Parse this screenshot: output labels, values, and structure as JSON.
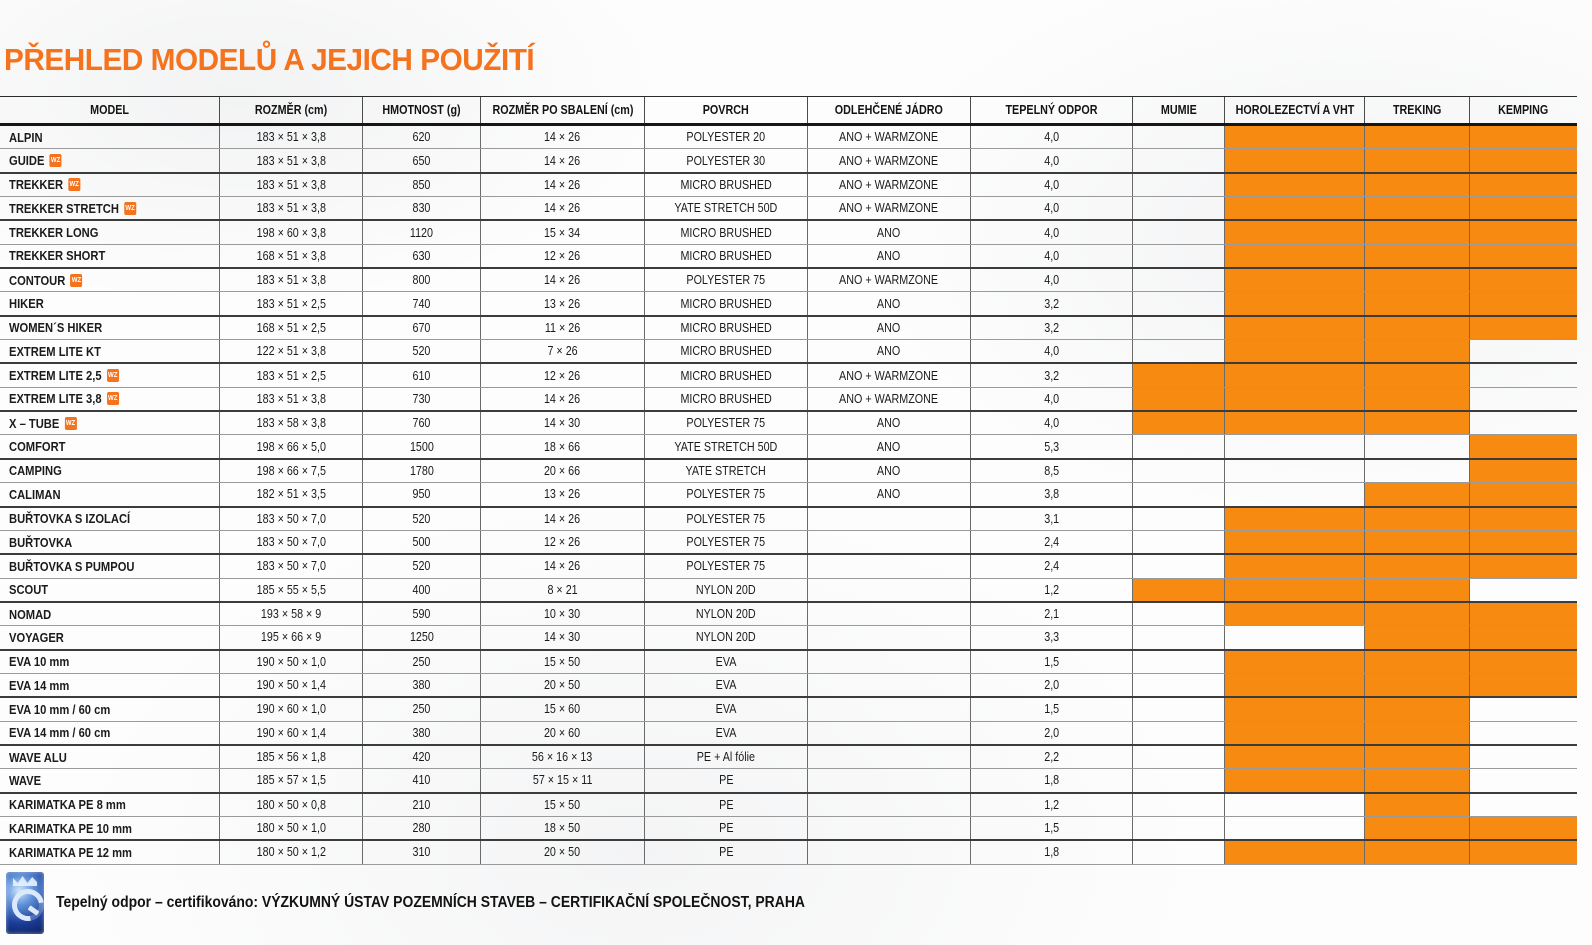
{
  "title": "PŘEHLED MODELŮ A JEJICH POUŽITÍ",
  "colors": {
    "accent_orange": "#f78b12",
    "title_orange": "#f4731c",
    "logo_blue": "#1c3e9a"
  },
  "wz_badge_label": "WZ",
  "table": {
    "columns": [
      "MODEL",
      "ROZMĚR (cm)",
      "HMOTNOST (g)",
      "ROZMĚR PO SBALENÍ (cm)",
      "POVRCH",
      "ODLEHČENÉ JÁDRO",
      "TEPELNÝ ODPOR",
      "MUMIE",
      "HOROLEZECTVÍ A VHT",
      "TREKING",
      "KEMPING"
    ],
    "rows": [
      {
        "model": "ALPIN",
        "wz": false,
        "rozmer": "183 × 51 × 3,8",
        "hmotnost": "620",
        "sbaleni": "14 × 26",
        "povrch": "POLYESTER 20",
        "jadro": "ANO + WARMZONE",
        "odpor": "4,0",
        "use": {
          "mumie": false,
          "horolezectvi": true,
          "treking": true,
          "kemping": true
        }
      },
      {
        "model": "GUIDE",
        "wz": true,
        "rozmer": "183 × 51 × 3,8",
        "hmotnost": "650",
        "sbaleni": "14 × 26",
        "povrch": "POLYESTER 30",
        "jadro": "ANO + WARMZONE",
        "odpor": "4,0",
        "use": {
          "mumie": false,
          "horolezectvi": true,
          "treking": true,
          "kemping": true
        }
      },
      {
        "model": "TREKKER",
        "wz": true,
        "rozmer": "183 × 51 × 3,8",
        "hmotnost": "850",
        "sbaleni": "14 × 26",
        "povrch": "MICRO BRUSHED",
        "jadro": "ANO + WARMZONE",
        "odpor": "4,0",
        "use": {
          "mumie": false,
          "horolezectvi": true,
          "treking": true,
          "kemping": true
        }
      },
      {
        "model": "TREKKER STRETCH",
        "wz": true,
        "rozmer": "183 × 51 × 3,8",
        "hmotnost": "830",
        "sbaleni": "14 × 26",
        "povrch": "YATE STRETCH 50D",
        "jadro": "ANO + WARMZONE",
        "odpor": "4,0",
        "use": {
          "mumie": false,
          "horolezectvi": true,
          "treking": true,
          "kemping": true
        }
      },
      {
        "model": "TREKKER LONG",
        "wz": false,
        "rozmer": "198 × 60 × 3,8",
        "hmotnost": "1120",
        "sbaleni": "15 × 34",
        "povrch": "MICRO BRUSHED",
        "jadro": "ANO",
        "odpor": "4,0",
        "use": {
          "mumie": false,
          "horolezectvi": true,
          "treking": true,
          "kemping": true
        }
      },
      {
        "model": "TREKKER SHORT",
        "wz": false,
        "rozmer": "168 × 51 × 3,8",
        "hmotnost": "630",
        "sbaleni": "12 × 26",
        "povrch": "MICRO BRUSHED",
        "jadro": "ANO",
        "odpor": "4,0",
        "use": {
          "mumie": false,
          "horolezectvi": true,
          "treking": true,
          "kemping": true
        }
      },
      {
        "model": "CONTOUR",
        "wz": true,
        "rozmer": "183 × 51 × 3,8",
        "hmotnost": "800",
        "sbaleni": "14 × 26",
        "povrch": "POLYESTER 75",
        "jadro": "ANO + WARMZONE",
        "odpor": "4,0",
        "use": {
          "mumie": false,
          "horolezectvi": true,
          "treking": true,
          "kemping": true
        }
      },
      {
        "model": "HIKER",
        "wz": false,
        "rozmer": "183 × 51 × 2,5",
        "hmotnost": "740",
        "sbaleni": "13 × 26",
        "povrch": "MICRO BRUSHED",
        "jadro": "ANO",
        "odpor": "3,2",
        "use": {
          "mumie": false,
          "horolezectvi": true,
          "treking": true,
          "kemping": true
        }
      },
      {
        "model": "WOMEN´S HIKER",
        "wz": false,
        "rozmer": "168 × 51 × 2,5",
        "hmotnost": "670",
        "sbaleni": "11 × 26",
        "povrch": "MICRO BRUSHED",
        "jadro": "ANO",
        "odpor": "3,2",
        "use": {
          "mumie": false,
          "horolezectvi": true,
          "treking": true,
          "kemping": true
        }
      },
      {
        "model": "EXTREM LITE KT",
        "wz": false,
        "rozmer": "122 × 51 × 3,8",
        "hmotnost": "520",
        "sbaleni": "7 × 26",
        "povrch": "MICRO BRUSHED",
        "jadro": "ANO",
        "odpor": "4,0",
        "use": {
          "mumie": false,
          "horolezectvi": true,
          "treking": true,
          "kemping": false
        }
      },
      {
        "model": "EXTREM LITE 2,5",
        "wz": true,
        "rozmer": "183 × 51 × 2,5",
        "hmotnost": "610",
        "sbaleni": "12 × 26",
        "povrch": "MICRO BRUSHED",
        "jadro": "ANO + WARMZONE",
        "odpor": "3,2",
        "use": {
          "mumie": true,
          "horolezectvi": true,
          "treking": true,
          "kemping": false
        }
      },
      {
        "model": "EXTREM LITE 3,8",
        "wz": true,
        "rozmer": "183 × 51 × 3,8",
        "hmotnost": "730",
        "sbaleni": "14 × 26",
        "povrch": "MICRO BRUSHED",
        "jadro": "ANO + WARMZONE",
        "odpor": "4,0",
        "use": {
          "mumie": true,
          "horolezectvi": true,
          "treking": true,
          "kemping": false
        }
      },
      {
        "model": "X – TUBE",
        "wz": true,
        "rozmer": "183 × 58 × 3,8",
        "hmotnost": "760",
        "sbaleni": "14 × 30",
        "povrch": "POLYESTER 75",
        "jadro": "ANO",
        "odpor": "4,0",
        "use": {
          "mumie": true,
          "horolezectvi": true,
          "treking": true,
          "kemping": false
        }
      },
      {
        "model": "COMFORT",
        "wz": false,
        "rozmer": "198 × 66 × 5,0",
        "hmotnost": "1500",
        "sbaleni": "18 × 66",
        "povrch": "YATE STRETCH 50D",
        "jadro": "ANO",
        "odpor": "5,3",
        "use": {
          "mumie": false,
          "horolezectvi": false,
          "treking": false,
          "kemping": true
        }
      },
      {
        "model": "CAMPING",
        "wz": false,
        "rozmer": "198 × 66 × 7,5",
        "hmotnost": "1780",
        "sbaleni": "20 × 66",
        "povrch": "YATE STRETCH",
        "jadro": "ANO",
        "odpor": "8,5",
        "use": {
          "mumie": false,
          "horolezectvi": false,
          "treking": false,
          "kemping": true
        }
      },
      {
        "model": "CALIMAN",
        "wz": false,
        "rozmer": "182 × 51 × 3,5",
        "hmotnost": "950",
        "sbaleni": "13 × 26",
        "povrch": "POLYESTER 75",
        "jadro": "ANO",
        "odpor": "3,8",
        "use": {
          "mumie": false,
          "horolezectvi": false,
          "treking": true,
          "kemping": true
        }
      },
      {
        "model": "BUŘTOVKA S IZOLACÍ",
        "wz": false,
        "rozmer": "183 × 50 × 7,0",
        "hmotnost": "520",
        "sbaleni": "14 × 26",
        "povrch": "POLYESTER 75",
        "jadro": "",
        "odpor": "3,1",
        "use": {
          "mumie": false,
          "horolezectvi": true,
          "treking": true,
          "kemping": true
        }
      },
      {
        "model": "BUŘTOVKA",
        "wz": false,
        "rozmer": "183 × 50 × 7,0",
        "hmotnost": "500",
        "sbaleni": "12 × 26",
        "povrch": "POLYESTER 75",
        "jadro": "",
        "odpor": "2,4",
        "use": {
          "mumie": false,
          "horolezectvi": true,
          "treking": true,
          "kemping": true
        }
      },
      {
        "model": "BUŘTOVKA S PUMPOU",
        "wz": false,
        "rozmer": "183 × 50 × 7,0",
        "hmotnost": "520",
        "sbaleni": "14 × 26",
        "povrch": "POLYESTER 75",
        "jadro": "",
        "odpor": "2,4",
        "use": {
          "mumie": false,
          "horolezectvi": true,
          "treking": true,
          "kemping": true
        }
      },
      {
        "model": "SCOUT",
        "wz": false,
        "rozmer": "185 × 55 × 5,5",
        "hmotnost": "400",
        "sbaleni": "8 × 21",
        "povrch": "NYLON 20D",
        "jadro": "",
        "odpor": "1,2",
        "use": {
          "mumie": true,
          "horolezectvi": true,
          "treking": true,
          "kemping": false
        }
      },
      {
        "model": "NOMAD",
        "wz": false,
        "rozmer": "193 × 58 × 9",
        "hmotnost": "590",
        "sbaleni": "10 × 30",
        "povrch": "NYLON 20D",
        "jadro": "",
        "odpor": "2,1",
        "use": {
          "mumie": false,
          "horolezectvi": true,
          "treking": true,
          "kemping": true
        }
      },
      {
        "model": "VOYAGER",
        "wz": false,
        "rozmer": "195 × 66 × 9",
        "hmotnost": "1250",
        "sbaleni": "14 × 30",
        "povrch": "NYLON 20D",
        "jadro": "",
        "odpor": "3,3",
        "use": {
          "mumie": false,
          "horolezectvi": false,
          "treking": true,
          "kemping": true
        }
      },
      {
        "model": "EVA 10 mm",
        "wz": false,
        "rozmer": "190 × 50 × 1,0",
        "hmotnost": "250",
        "sbaleni": "15 × 50",
        "povrch": "EVA",
        "jadro": "",
        "odpor": "1,5",
        "use": {
          "mumie": false,
          "horolezectvi": true,
          "treking": true,
          "kemping": true
        }
      },
      {
        "model": "EVA 14 mm",
        "wz": false,
        "rozmer": "190 × 50 × 1,4",
        "hmotnost": "380",
        "sbaleni": "20 × 50",
        "povrch": "EVA",
        "jadro": "",
        "odpor": "2,0",
        "use": {
          "mumie": false,
          "horolezectvi": true,
          "treking": true,
          "kemping": true
        }
      },
      {
        "model": "EVA 10 mm / 60 cm",
        "wz": false,
        "rozmer": "190 × 60 × 1,0",
        "hmotnost": "250",
        "sbaleni": "15 × 60",
        "povrch": "EVA",
        "jadro": "",
        "odpor": "1,5",
        "use": {
          "mumie": false,
          "horolezectvi": true,
          "treking": true,
          "kemping": false
        }
      },
      {
        "model": "EVA 14 mm / 60 cm",
        "wz": false,
        "rozmer": "190 × 60 × 1,4",
        "hmotnost": "380",
        "sbaleni": "20 × 60",
        "povrch": "EVA",
        "jadro": "",
        "odpor": "2,0",
        "use": {
          "mumie": false,
          "horolezectvi": true,
          "treking": true,
          "kemping": false
        }
      },
      {
        "model": "WAVE ALU",
        "wz": false,
        "rozmer": "185 × 56 × 1,8",
        "hmotnost": "420",
        "sbaleni": "56 × 16 × 13",
        "povrch": "PE + Al fólie",
        "jadro": "",
        "odpor": "2,2",
        "use": {
          "mumie": false,
          "horolezectvi": true,
          "treking": true,
          "kemping": false
        }
      },
      {
        "model": "WAVE",
        "wz": false,
        "rozmer": "185 × 57 × 1,5",
        "hmotnost": "410",
        "sbaleni": "57 × 15 × 11",
        "povrch": "PE",
        "jadro": "",
        "odpor": "1,8",
        "use": {
          "mumie": false,
          "horolezectvi": true,
          "treking": true,
          "kemping": false
        }
      },
      {
        "model": "KARIMATKA PE 8 mm",
        "wz": false,
        "rozmer": "180 × 50 × 0,8",
        "hmotnost": "210",
        "sbaleni": "15 × 50",
        "povrch": "PE",
        "jadro": "",
        "odpor": "1,2",
        "use": {
          "mumie": false,
          "horolezectvi": false,
          "treking": true,
          "kemping": false
        }
      },
      {
        "model": "KARIMATKA PE 10 mm",
        "wz": false,
        "rozmer": "180 × 50 × 1,0",
        "hmotnost": "280",
        "sbaleni": "18 × 50",
        "povrch": "PE",
        "jadro": "",
        "odpor": "1,5",
        "use": {
          "mumie": false,
          "horolezectvi": false,
          "treking": true,
          "kemping": true
        }
      },
      {
        "model": "KARIMATKA PE 12 mm",
        "wz": false,
        "rozmer": "180 × 50 × 1,2",
        "hmotnost": "310",
        "sbaleni": "20 × 50",
        "povrch": "PE",
        "jadro": "",
        "odpor": "1,8",
        "use": {
          "mumie": false,
          "horolezectvi": true,
          "treking": true,
          "kemping": true
        }
      }
    ]
  },
  "footer": {
    "text": "Tepelný odpor – certifikováno: VÝZKUMNÝ ÚSTAV POZEMNÍCH STAVEB – CERTIFIKAČNÍ SPOLEČNOST, PRAHA",
    "logo": "certification-quality-mark"
  }
}
